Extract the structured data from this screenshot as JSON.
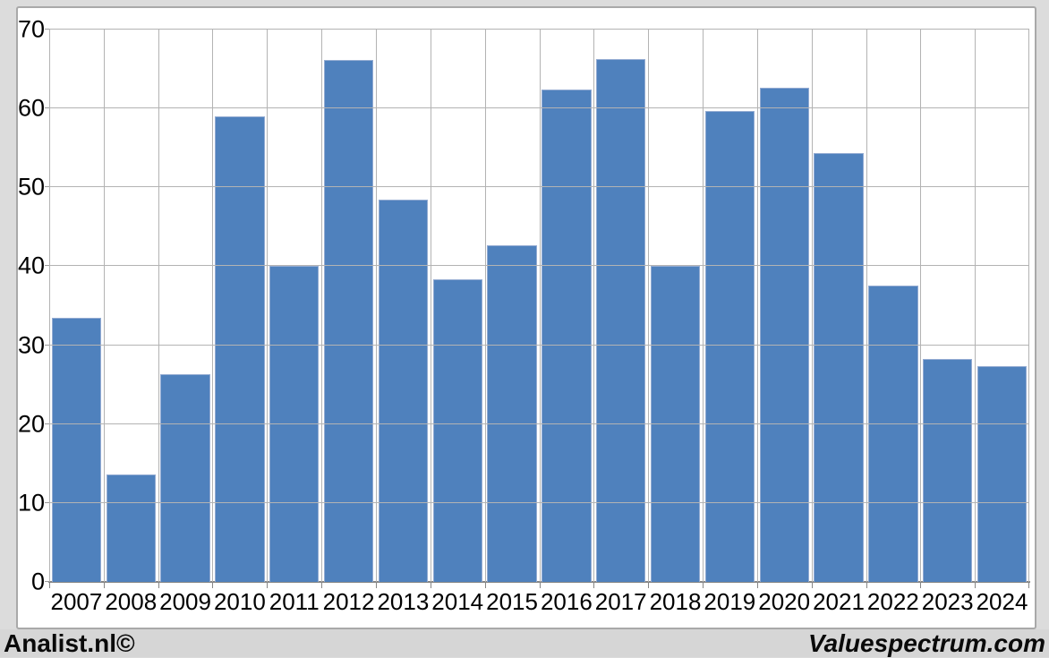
{
  "chart_data": {
    "type": "bar",
    "categories": [
      "2007",
      "2008",
      "2009",
      "2010",
      "2011",
      "2012",
      "2013",
      "2014",
      "2015",
      "2016",
      "2017",
      "2018",
      "2019",
      "2020",
      "2021",
      "2022",
      "2023",
      "2024"
    ],
    "values": [
      33.5,
      13.6,
      26.3,
      59.0,
      40.0,
      66.2,
      48.4,
      38.4,
      42.7,
      62.4,
      66.3,
      40.1,
      59.7,
      62.6,
      54.4,
      37.6,
      28.3,
      27.4
    ],
    "title": "",
    "xlabel": "",
    "ylabel": "",
    "ylim": [
      0,
      70
    ],
    "yticks": [
      0,
      10,
      20,
      30,
      40,
      50,
      60,
      70
    ],
    "grid": "horizontal-and-vertical",
    "legend": "none",
    "bar_color": "#4f81bd",
    "bar_border_color": "#93abd2",
    "gridline_color": "#b3b3b3",
    "axis_color": "#868686"
  },
  "footer": {
    "left_label": "Analist.nl©",
    "right_label": "Valuespectrum.com"
  },
  "colors": {
    "page_bg": "#dcdcdc",
    "panel_bg": "#ffffff",
    "frame_border": "#a9a9a9",
    "footer_bg": "#d6d6d6",
    "text": "#000000"
  }
}
